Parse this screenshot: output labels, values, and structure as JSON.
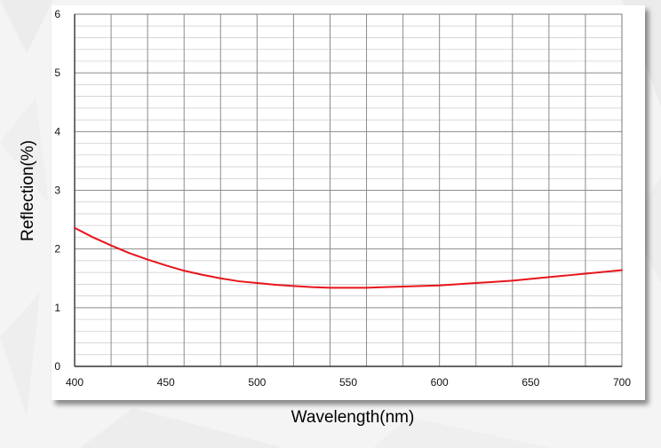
{
  "chart_data": {
    "type": "line",
    "title": "",
    "xlabel": "Wavelength(nm)",
    "ylabel": "Reflection(%)",
    "xlim": [
      400,
      700
    ],
    "ylim": [
      0,
      6
    ],
    "xticks": [
      400,
      450,
      500,
      550,
      600,
      650,
      700
    ],
    "xtick_labels": [
      "400",
      "450",
      "500",
      "550",
      "600",
      "650",
      "700"
    ],
    "yticks": [
      0,
      1,
      2,
      3,
      4,
      5,
      6
    ],
    "ytick_labels": [
      "0",
      "1",
      "2",
      "3",
      "4",
      "5",
      "6"
    ],
    "x_minor_step": 20,
    "y_minor_step": 0.2,
    "grid": true,
    "series": [
      {
        "color": "#e8141b",
        "x": [
          400,
          410,
          420,
          430,
          440,
          450,
          460,
          470,
          480,
          490,
          500,
          510,
          520,
          530,
          540,
          550,
          560,
          570,
          580,
          590,
          600,
          610,
          620,
          630,
          640,
          650,
          660,
          670,
          680,
          690,
          700
        ],
        "y": [
          2.36,
          2.2,
          2.06,
          1.93,
          1.82,
          1.72,
          1.63,
          1.56,
          1.5,
          1.45,
          1.42,
          1.39,
          1.37,
          1.35,
          1.34,
          1.34,
          1.34,
          1.35,
          1.36,
          1.37,
          1.38,
          1.4,
          1.42,
          1.44,
          1.46,
          1.49,
          1.52,
          1.55,
          1.58,
          1.61,
          1.64
        ]
      }
    ]
  }
}
